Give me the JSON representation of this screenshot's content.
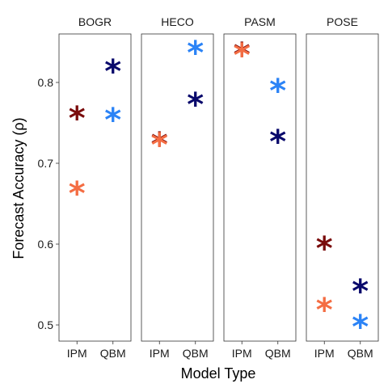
{
  "chart_data": {
    "type": "scatter",
    "title": "",
    "xlabel": "Model Type",
    "ylabel": "Forecast Accuracy (ρ)",
    "categories": [
      "IPM",
      "QBM"
    ],
    "ylim": [
      0.48,
      0.86
    ],
    "yticks": [
      0.5,
      0.6,
      0.7,
      0.8
    ],
    "ytick_labels": [
      "0.5",
      "0.6",
      "0.7",
      "0.8"
    ],
    "grid": false,
    "legend": "none",
    "marker": "*",
    "panels": [
      {
        "label": "BOGR",
        "points": [
          {
            "x": "IPM",
            "y": 0.757,
            "color": "#7a0b0b"
          },
          {
            "x": "IPM",
            "y": 0.664,
            "color": "#f46d43"
          },
          {
            "x": "QBM",
            "y": 0.815,
            "color": "#08086b"
          },
          {
            "x": "QBM",
            "y": 0.755,
            "color": "#2b83f6"
          }
        ]
      },
      {
        "label": "HECO",
        "points": [
          {
            "x": "IPM",
            "y": 0.725,
            "color": "#7a0b0b"
          },
          {
            "x": "IPM",
            "y": 0.724,
            "color": "#f46d43"
          },
          {
            "x": "QBM",
            "y": 0.838,
            "color": "#2b83f6"
          },
          {
            "x": "QBM",
            "y": 0.774,
            "color": "#08086b"
          }
        ]
      },
      {
        "label": "PASM",
        "points": [
          {
            "x": "IPM",
            "y": 0.836,
            "color": "#7a0b0b"
          },
          {
            "x": "IPM",
            "y": 0.835,
            "color": "#f46d43"
          },
          {
            "x": "QBM",
            "y": 0.791,
            "color": "#2b83f6"
          },
          {
            "x": "QBM",
            "y": 0.728,
            "color": "#08086b"
          }
        ]
      },
      {
        "label": "POSE",
        "points": [
          {
            "x": "IPM",
            "y": 0.596,
            "color": "#7a0b0b"
          },
          {
            "x": "IPM",
            "y": 0.52,
            "color": "#f46d43"
          },
          {
            "x": "QBM",
            "y": 0.543,
            "color": "#08086b"
          },
          {
            "x": "QBM",
            "y": 0.499,
            "color": "#2b83f6"
          }
        ]
      }
    ]
  }
}
